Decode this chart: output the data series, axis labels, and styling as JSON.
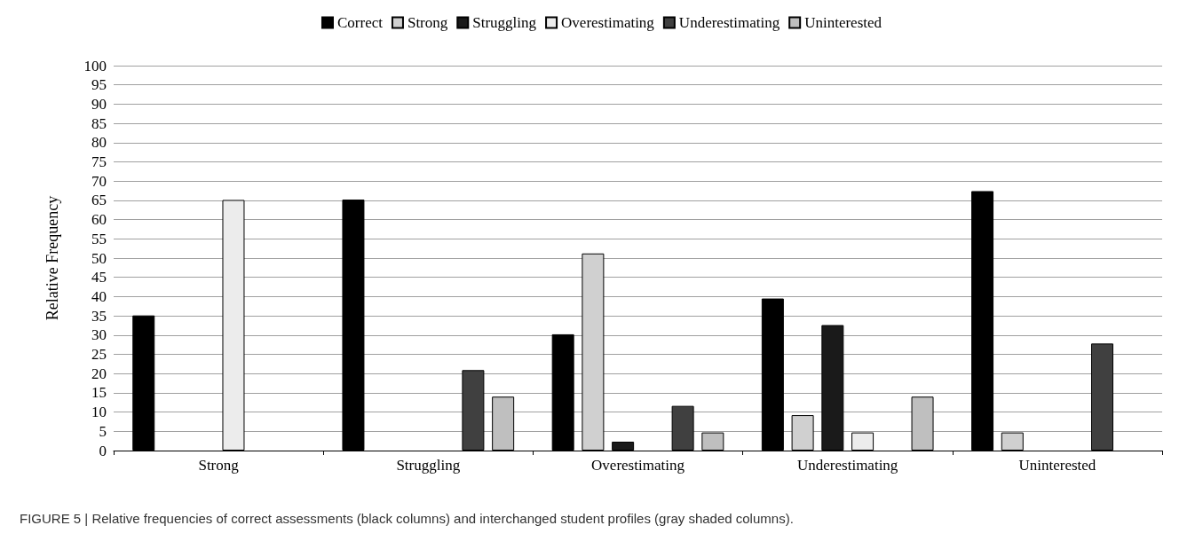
{
  "chart_data": {
    "type": "bar",
    "ylabel": "Relative Frequency",
    "categories": [
      "Strong",
      "Struggling",
      "Overestimating",
      "Underestimating",
      "Uninterested"
    ],
    "series": [
      {
        "name": "Correct",
        "color": "#000000",
        "values": [
          35.1,
          65.2,
          30.2,
          39.5,
          67.4
        ]
      },
      {
        "name": "Strong",
        "color": "#d0d0d0",
        "values": [
          0,
          0,
          51.2,
          9.2,
          4.7
        ]
      },
      {
        "name": "Struggling",
        "color": "#1a1a1a",
        "values": [
          0,
          0,
          2.3,
          32.6,
          0
        ]
      },
      {
        "name": "Overestimating",
        "color": "#ececec",
        "values": [
          65.1,
          0,
          0,
          4.7,
          0
        ]
      },
      {
        "name": "Underestimating",
        "color": "#404040",
        "values": [
          0,
          20.9,
          11.6,
          0,
          27.8
        ]
      },
      {
        "name": "Uninterested",
        "color": "#bfbfbf",
        "values": [
          0,
          14.0,
          4.7,
          14.0,
          0
        ]
      }
    ],
    "ylim": [
      0,
      100
    ],
    "yticks": [
      0,
      5,
      10,
      15,
      20,
      25,
      30,
      35,
      40,
      45,
      50,
      55,
      60,
      65,
      70,
      75,
      80,
      85,
      90,
      95,
      100
    ],
    "grid": "y",
    "legend": "top",
    "annotations": [
      "FIGURE 5 | Relative frequencies of correct assessments (black columns) and interchanged student profiles (gray shaded columns)."
    ]
  }
}
